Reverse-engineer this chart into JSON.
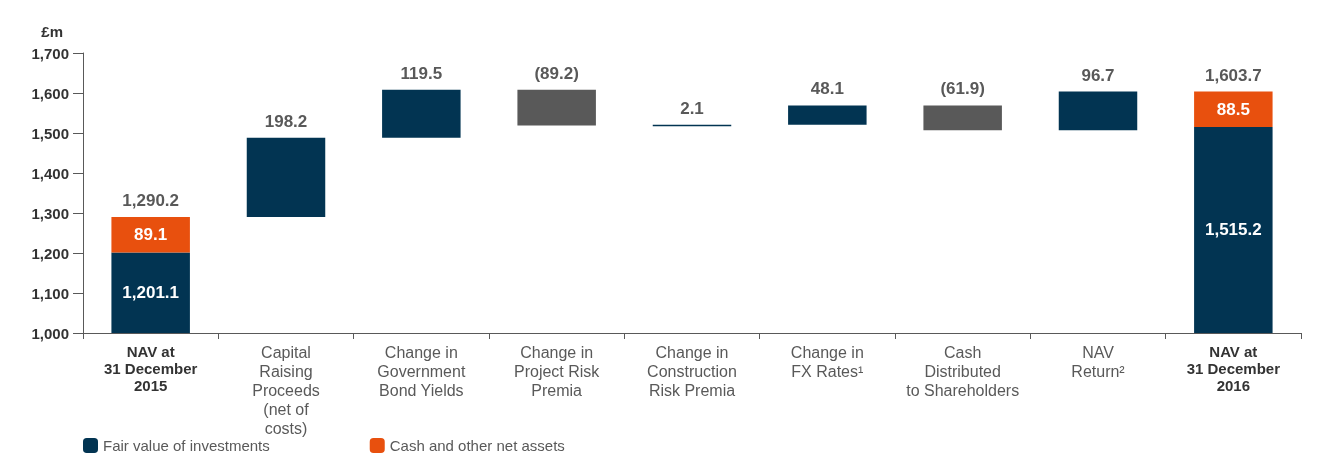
{
  "chart_data": {
    "type": "bar",
    "ylabel": "£m",
    "categories": [
      "NAV at\n31 December\n2015",
      "Capital\nRaising\nProceeds\n(net of\ncosts)",
      "Change in\nGovernment\nBond Yields",
      "Change in\nProject Risk\nPremia",
      "Change in\nConstruction\nRisk Premia",
      "Change in\nFX Rates¹",
      "Cash\nDistributed\nto Shareholders",
      "NAV\nReturn²",
      "NAV at\n31 December\n2016"
    ],
    "series": [
      {
        "name": "Fair value of investments",
        "color": "#023452",
        "base": [
          0,
          1290.2,
          1488.4,
          null,
          1518.7,
          1520.8,
          null,
          1507.0,
          0
        ],
        "values": [
          1201.1,
          198.2,
          119.5,
          null,
          2.1,
          48.1,
          null,
          96.7,
          1515.2
        ],
        "value_labels": [
          "1,201.1",
          "198.2",
          "119.5",
          null,
          "2.1",
          "48.1",
          null,
          "96.7",
          "1,515.2"
        ]
      },
      {
        "name": "Cash and other net assets",
        "color": "#e8500e",
        "base": [
          1201.1,
          null,
          null,
          null,
          null,
          null,
          null,
          null,
          1515.2
        ],
        "values": [
          89.1,
          null,
          null,
          null,
          null,
          null,
          null,
          null,
          88.5
        ],
        "value_labels": [
          "89.1",
          null,
          null,
          null,
          null,
          null,
          null,
          null,
          "88.5"
        ]
      },
      {
        "color": "#595959",
        "base": [
          null,
          null,
          null,
          1607.9,
          null,
          null,
          1568.9,
          null,
          null
        ],
        "values": [
          null,
          null,
          null,
          -89.2,
          null,
          null,
          -61.9,
          null,
          null
        ],
        "value_labels": [
          null,
          null,
          null,
          "(89.2)",
          null,
          null,
          "(61.9)",
          null,
          null
        ]
      }
    ],
    "totals": [
      "1,290.2",
      null,
      null,
      null,
      null,
      null,
      null,
      null,
      "1,603.7"
    ],
    "ylim": [
      1000,
      1700
    ],
    "yticks": [
      {
        "value": 1000,
        "label": "1,000"
      },
      {
        "value": 1100,
        "label": "1,100"
      },
      {
        "value": 1200,
        "label": "1,200"
      },
      {
        "value": 1300,
        "label": "1,300"
      },
      {
        "value": 1400,
        "label": "1,400"
      },
      {
        "value": 1500,
        "label": "1,500"
      },
      {
        "value": 1600,
        "label": "1,600"
      },
      {
        "value": 1700,
        "label": "1,700"
      }
    ],
    "grid": false,
    "legend": "bottom left"
  }
}
